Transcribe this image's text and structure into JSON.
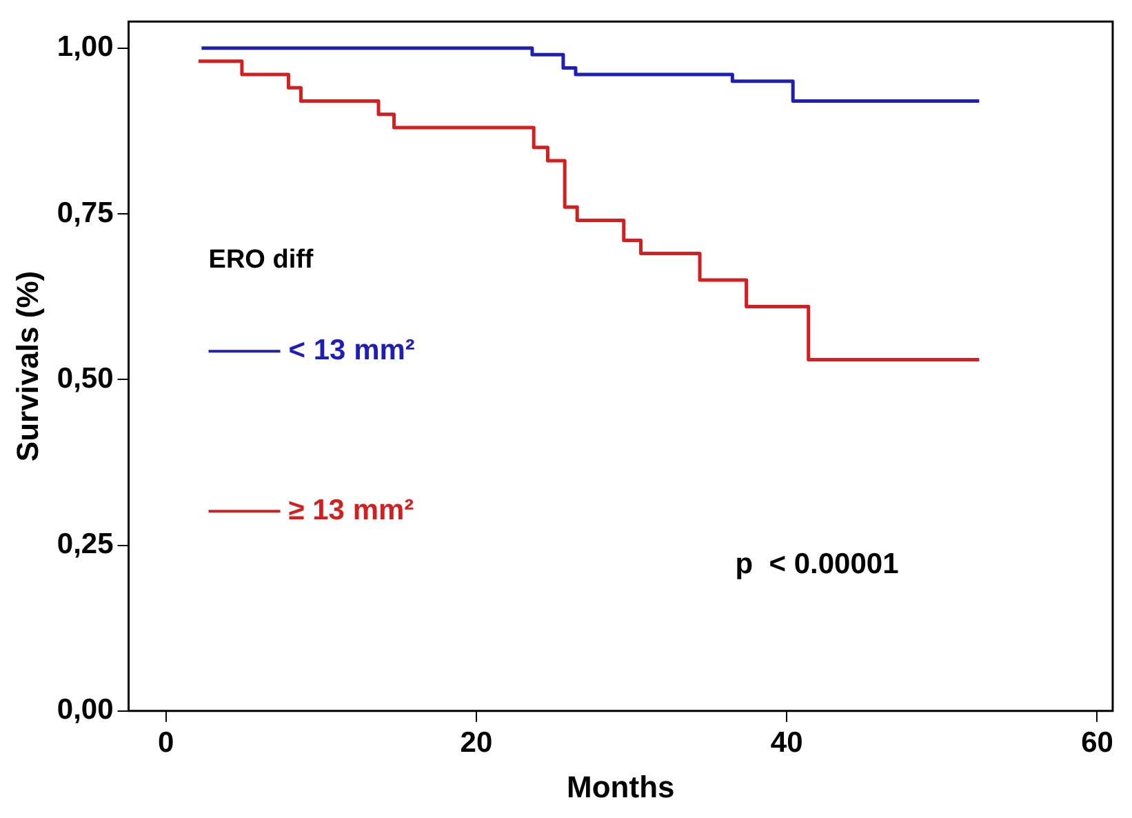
{
  "chart_data": {
    "type": "step",
    "xlabel": "Months",
    "ylabel": "Survivals (%)",
    "legend_title": "ERO diff",
    "legend": "left",
    "grid": false,
    "marker": "none",
    "line_style": "solid",
    "xlim": [
      -2.4,
      61
    ],
    "xticks": [
      0,
      20,
      40,
      60
    ],
    "ylim": [
      0,
      1.04
    ],
    "yticks": [
      {
        "value": 0,
        "label": "0,00"
      },
      {
        "value": 0.25,
        "label": "0,25"
      },
      {
        "value": 0.5,
        "label": "0,50"
      },
      {
        "value": 0.75,
        "label": "0,75"
      },
      {
        "value": 1,
        "label": "1,00"
      }
    ],
    "series": [
      {
        "name": "< 13 mm²",
        "color": "#1f1fb4",
        "x": [
          2.3,
          23.6,
          25.6,
          26.4,
          36.5,
          40.4,
          52.4
        ],
        "values": [
          1.0,
          0.99,
          0.97,
          0.96,
          0.95,
          0.92,
          0.92
        ]
      },
      {
        "name": "≥ 13 mm²",
        "color": "#d21f1f",
        "x": [
          2.1,
          4.9,
          7.9,
          8.7,
          13.7,
          14.7,
          23.7,
          24.6,
          25.7,
          26.5,
          29.5,
          30.6,
          34.4,
          37.4,
          41.4,
          52.4
        ],
        "values": [
          0.98,
          0.96,
          0.94,
          0.92,
          0.9,
          0.88,
          0.85,
          0.83,
          0.76,
          0.74,
          0.71,
          0.69,
          0.65,
          0.61,
          0.53,
          0.53
        ]
      }
    ],
    "annotations": [
      "p  < 0.00001"
    ]
  }
}
